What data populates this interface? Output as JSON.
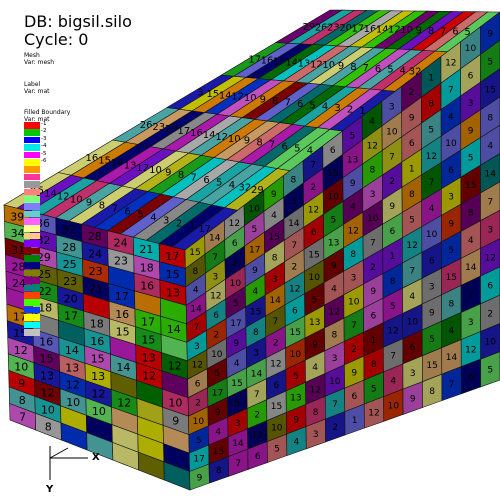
{
  "window": {
    "db_title": "DB: bigsil.silo",
    "cycle_label": "Cycle: 0"
  },
  "plots": {
    "mesh": {
      "title": "Mesh",
      "var": "Var: mesh"
    },
    "label": {
      "title": "Label",
      "var": "Var: mat"
    },
    "filled_boundary": {
      "title": "Filled Boundary",
      "var": "Var: mat"
    }
  },
  "legend": {
    "entries": [
      {
        "label": "1",
        "color": "#ff0000"
      },
      {
        "label": "2",
        "color": "#00c800"
      },
      {
        "label": "3",
        "color": "#0000ff"
      },
      {
        "label": "4",
        "color": "#00e6e6"
      },
      {
        "label": "5",
        "color": "#ff00ff"
      },
      {
        "label": "6",
        "color": "#ffff00"
      },
      {
        "label": "",
        "color": "#ff9900"
      },
      {
        "label": "",
        "color": "#ff3399"
      },
      {
        "label": "",
        "color": "#999999"
      },
      {
        "label": "",
        "color": "#ff8080"
      },
      {
        "label": "",
        "color": "#80ff80"
      },
      {
        "label": "",
        "color": "#8080ff"
      },
      {
        "label": "",
        "color": "#66cccc"
      },
      {
        "label": "",
        "color": "#ff66ff"
      },
      {
        "label": "",
        "color": "#ffff99"
      },
      {
        "label": "",
        "color": "#ffcc80"
      },
      {
        "label": "",
        "color": "#8000ff"
      },
      {
        "label": "",
        "color": "#800000"
      },
      {
        "label": "",
        "color": "#008000"
      },
      {
        "label": "",
        "color": "#000080"
      },
      {
        "label": "",
        "color": "#808000"
      },
      {
        "label": "",
        "color": "#800080"
      },
      {
        "label": "",
        "color": "#008080"
      },
      {
        "label": "",
        "color": "#ff4000"
      },
      {
        "label": "",
        "color": "#40ff00"
      },
      {
        "label": "",
        "color": "#0040ff"
      },
      {
        "label": "",
        "color": "#ffff00"
      },
      {
        "label": "",
        "color": "#00ffff"
      },
      {
        "label": "",
        "color": "#c0c0c0"
      }
    ]
  },
  "scene": {
    "left_face_labels": [
      [
        "39",
        "34",
        "31",
        "28",
        "24",
        "",
        "17",
        "15",
        "12",
        "10",
        "9",
        "8",
        "7"
      ],
      [
        "36",
        "32",
        "29",
        "25",
        "22",
        "18",
        "",
        "16",
        "15",
        "13",
        "12",
        "10",
        "8"
      ],
      [
        "32",
        "28",
        "25",
        "23",
        "20",
        "17",
        "",
        "14",
        "13",
        "12",
        "10",
        "",
        ""
      ],
      [
        "28",
        "24",
        "23",
        "21",
        "",
        "18",
        "16",
        "15",
        "13",
        "12",
        "10",
        "",
        ""
      ],
      [
        "24",
        "23",
        "",
        "17",
        "16",
        "15",
        "",
        "14",
        "",
        "12",
        "",
        "",
        ""
      ],
      [
        "21",
        "18",
        "16",
        "",
        "17",
        "15",
        "13",
        "12",
        "",
        "",
        "",
        "",
        ""
      ],
      [
        "17",
        "15",
        "13",
        "",
        "14",
        "",
        "12",
        "",
        "10",
        "9",
        "",
        "",
        ""
      ]
    ],
    "top_face_labels": [
      "15",
      "14",
      "12",
      "10",
      "9",
      "8",
      "7",
      "6",
      "5",
      "4",
      "3",
      "2",
      "1",
      "17",
      "16",
      "15",
      "14",
      "13",
      "12",
      "10",
      "9",
      "8",
      "7",
      "6",
      "5",
      "4",
      "32",
      "29",
      "26",
      "23",
      "20",
      "17",
      "16",
      "14",
      "12",
      "10",
      "9",
      "8",
      "7",
      "6",
      "5",
      "4",
      "3"
    ],
    "right_face_labels": [
      "15",
      "14",
      "12",
      "10",
      "9",
      "8",
      "7",
      "6",
      "5",
      "4",
      "3",
      "2",
      "1",
      "12",
      "10",
      "9",
      "8",
      "7",
      "6",
      "5",
      "4",
      "3",
      "2",
      "15",
      "13",
      "12",
      "10",
      "9",
      "8",
      "7",
      "6",
      "5",
      "4",
      "3",
      "2",
      "17",
      "15",
      "14",
      "12",
      "10",
      "9",
      "8",
      "7",
      "6",
      "5",
      "4",
      "3"
    ],
    "palette": [
      "#cc0000",
      "#1a9a1a",
      "#1a1aaa",
      "#19a3a3",
      "#aa19aa",
      "#b3b319",
      "#cc7a00",
      "#c0306a",
      "#888888",
      "#cc6a6a",
      "#5ac85a",
      "#6060cc",
      "#4aa3a3",
      "#c050c0",
      "#cccc70",
      "#c89a60",
      "#6a10c0",
      "#7a0000",
      "#006a00",
      "#00006a",
      "#6a6a00",
      "#6a006a",
      "#006a6a",
      "#c03000",
      "#30c000",
      "#0030c0",
      "#c0c000",
      "#00c0c0",
      "#a8a8a8"
    ]
  },
  "axes": {
    "x_label": "X",
    "y_label": "Y"
  }
}
